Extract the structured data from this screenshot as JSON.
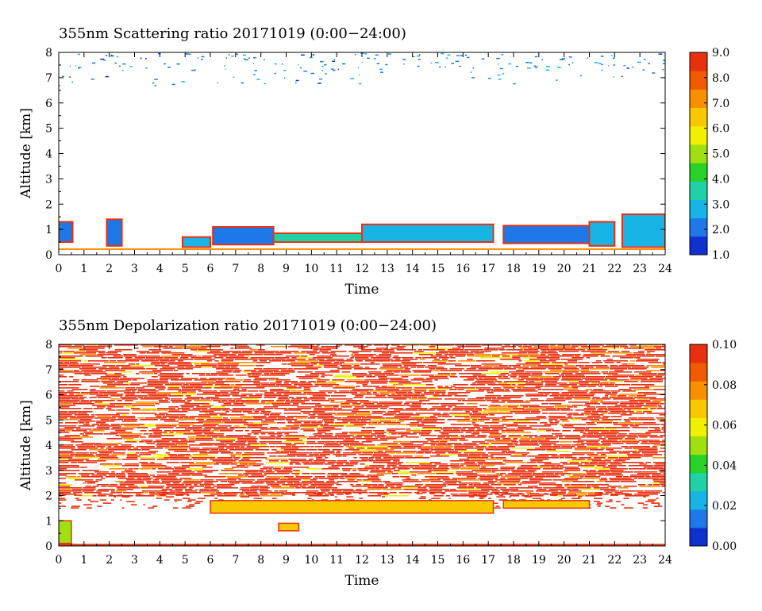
{
  "chart_data": [
    {
      "type": "heatmap",
      "title": "355nm Scattering ratio  20171019 (0:00−24:00)",
      "xlabel": "Time",
      "ylabel": "Altitude [km]",
      "x_ticks": [
        "0",
        "1",
        "2",
        "3",
        "4",
        "5",
        "6",
        "7",
        "8",
        "9",
        "10",
        "11",
        "12",
        "13",
        "14",
        "15",
        "16",
        "17",
        "18",
        "19",
        "20",
        "21",
        "22",
        "23",
        "24"
      ],
      "y_ticks": [
        "0",
        "1",
        "2",
        "3",
        "4",
        "5",
        "6",
        "7",
        "8"
      ],
      "xlim": [
        0,
        24
      ],
      "ylim": [
        0,
        8
      ],
      "colorbar": {
        "min": 1.0,
        "max": 9.0,
        "tick_labels": [
          "1.0",
          "2.0",
          "3.0",
          "4.0",
          "5.0",
          "6.0",
          "7.0",
          "8.0",
          "9.0"
        ],
        "tick_values": [
          1,
          2,
          3,
          4,
          5,
          6,
          7,
          8,
          9
        ],
        "colormap": [
          "#1030d0",
          "#1e78e8",
          "#18b4e6",
          "#1ed2a6",
          "#28d228",
          "#a0e010",
          "#f0f000",
          "#f8c800",
          "#f89000",
          "#f05a00",
          "#e83010"
        ]
      },
      "regions": [
        {
          "x": [
            0.0,
            0.55
          ],
          "y": [
            0.5,
            1.3
          ],
          "value": 2.0
        },
        {
          "x": [
            1.9,
            2.5
          ],
          "y": [
            0.35,
            1.4
          ],
          "value": 2.2
        },
        {
          "x": [
            4.9,
            6.0
          ],
          "y": [
            0.3,
            0.7
          ],
          "value": 2.5
        },
        {
          "x": [
            6.1,
            8.5
          ],
          "y": [
            0.4,
            1.1
          ],
          "value": 1.8
        },
        {
          "x": [
            8.5,
            12.0
          ],
          "y": [
            0.5,
            0.85
          ],
          "value": 3.5
        },
        {
          "x": [
            12.0,
            17.2
          ],
          "y": [
            0.5,
            1.2
          ],
          "value": 3.0
        },
        {
          "x": [
            17.6,
            21.0
          ],
          "y": [
            0.45,
            1.15
          ],
          "value": 1.8
        },
        {
          "x": [
            21.0,
            22.0
          ],
          "y": [
            0.35,
            1.3
          ],
          "value": 3.0
        },
        {
          "x": [
            22.3,
            24.0
          ],
          "y": [
            0.3,
            1.6
          ],
          "value": 3.0
        }
      ]
    },
    {
      "type": "heatmap",
      "title": "355nm Depolarization ratio  20171019 (0:00−24:00)",
      "xlabel": "Time",
      "ylabel": "Altitude [km]",
      "x_ticks": [
        "0",
        "1",
        "2",
        "3",
        "4",
        "5",
        "6",
        "7",
        "8",
        "9",
        "10",
        "11",
        "12",
        "13",
        "14",
        "15",
        "16",
        "17",
        "18",
        "19",
        "20",
        "21",
        "22",
        "23",
        "24"
      ],
      "y_ticks": [
        "0",
        "1",
        "2",
        "3",
        "4",
        "5",
        "6",
        "7",
        "8"
      ],
      "xlim": [
        0,
        24
      ],
      "ylim": [
        0,
        8
      ],
      "colorbar": {
        "min": 0.0,
        "max": 0.1,
        "tick_labels": [
          "0.00",
          "0.02",
          "0.04",
          "0.06",
          "0.08",
          "0.10"
        ],
        "tick_values": [
          0,
          0.02,
          0.04,
          0.06,
          0.08,
          0.1
        ],
        "colormap": [
          "#1030d0",
          "#1e78e8",
          "#18b4e6",
          "#1ed2a6",
          "#28d228",
          "#a0e010",
          "#f0f000",
          "#f8c800",
          "#f89000",
          "#f05a00",
          "#e83010"
        ]
      },
      "regions": [
        {
          "x": [
            0.0,
            24.0
          ],
          "y": [
            2.0,
            8.0
          ],
          "value": 0.095
        },
        {
          "x": [
            6.0,
            17.2
          ],
          "y": [
            1.3,
            1.8
          ],
          "value": 0.065
        },
        {
          "x": [
            17.6,
            21.0
          ],
          "y": [
            1.5,
            1.8
          ],
          "value": 0.068
        },
        {
          "x": [
            0.0,
            0.5
          ],
          "y": [
            0.1,
            1.0
          ],
          "value": 0.05
        },
        {
          "x": [
            8.7,
            9.5
          ],
          "y": [
            0.6,
            0.9
          ],
          "value": 0.07
        }
      ]
    }
  ]
}
